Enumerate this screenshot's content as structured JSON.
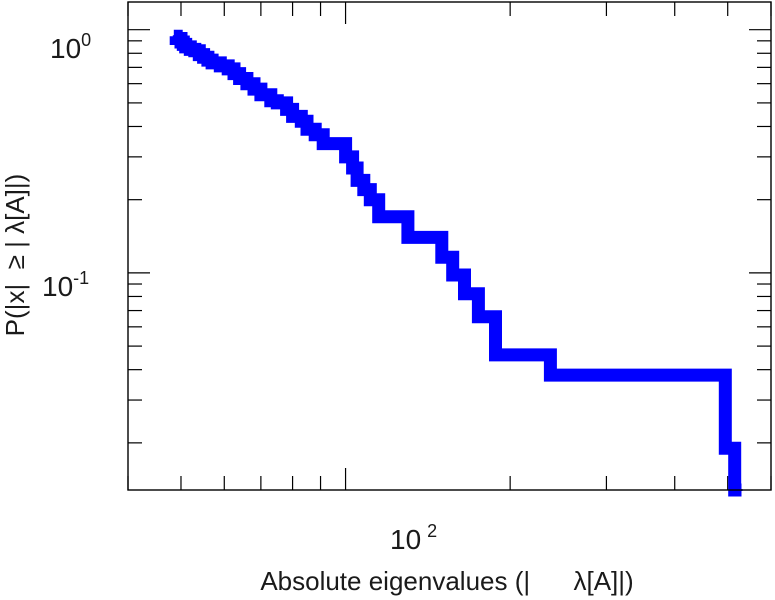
{
  "chart_data": {
    "type": "line",
    "step": true,
    "xscale": "log",
    "yscale": "log",
    "xlim": [
      40,
      600
    ],
    "ylim": [
      0.0128,
      1.3
    ],
    "xlabel": "Absolute eigenvalues (|      λ[A]|)",
    "ylabel": "P(|x|  ≥ | λ[A]|)",
    "x_tick_labels": [
      {
        "base": "10",
        "exp": "2",
        "value": 100
      }
    ],
    "y_tick_labels": [
      {
        "base": "10",
        "exp": "0",
        "value": 1
      },
      {
        "base": "10",
        "exp": "-1",
        "value": 0.1
      }
    ],
    "color": "#0000ff",
    "grid": false,
    "legend": "none",
    "series": [
      {
        "x": [
          48.5,
          49.0,
          50.0,
          50.5,
          51.0,
          52.0,
          53.0,
          54.0,
          55.0,
          56.0,
          57.0,
          59.0,
          61.0,
          62.5,
          64.0,
          66.0,
          68.0,
          70.0,
          73.0,
          75.0,
          78.0,
          80.0,
          83.0,
          85.0,
          88.0,
          91.0,
          100.0,
          103.0,
          105.0,
          108.0,
          111.0,
          115.0,
          130.0,
          150.0,
          157.0,
          165.0,
          175.0,
          188.0,
          237.0,
          280.0,
          495.0,
          515.0,
          530.0
        ],
        "y": [
          0.94,
          0.92,
          0.89,
          0.87,
          0.85,
          0.83,
          0.82,
          0.79,
          0.77,
          0.75,
          0.73,
          0.71,
          0.69,
          0.66,
          0.63,
          0.6,
          0.57,
          0.54,
          0.51,
          0.5,
          0.47,
          0.44,
          0.42,
          0.39,
          0.37,
          0.34,
          0.3,
          0.27,
          0.24,
          0.22,
          0.2,
          0.17,
          0.14,
          0.116,
          0.098,
          0.082,
          0.066,
          0.046,
          0.038,
          0.038,
          0.019,
          0.0128,
          0.0128
        ]
      }
    ]
  }
}
